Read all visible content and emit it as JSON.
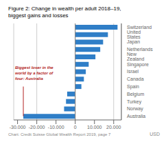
{
  "chart_data": {
    "type": "bar",
    "orientation": "horizontal",
    "title": "Figure 2: Change in wealth per adult 2018–19,\nbiggest gains and losses",
    "categories": [
      "Australia",
      "Norway",
      "Turkey",
      "Belgium",
      "Spain",
      "Canada",
      "Israel",
      "Singapore",
      "New Zealand",
      "Netherlands",
      "Japan",
      "United States",
      "Switzerland"
    ],
    "values": [
      -27000,
      -5800,
      -4800,
      -4200,
      3200,
      4500,
      5500,
      7000,
      10500,
      13000,
      14500,
      17000,
      22000
    ],
    "color": "#2F7EC7",
    "xlim": [
      -32000,
      24000
    ],
    "xticks": [
      {
        "value": -30000,
        "label": "-30.000"
      },
      {
        "value": -20000,
        "label": "-20.000"
      },
      {
        "value": -10000,
        "label": "-10.000"
      },
      0,
      {
        "value": 10000,
        "label": "10.000"
      },
      {
        "value": 20000,
        "label": "20.000"
      }
    ],
    "grid": true,
    "xlabel": "USD",
    "annotations": [
      {
        "text": "Biggest loser in the\nworld by a factor of\nfour: Australia",
        "color": "#B22222"
      },
      {
        "text": "Chart: Credit Suisse Global Wealth Report 2019, page 7"
      }
    ]
  }
}
